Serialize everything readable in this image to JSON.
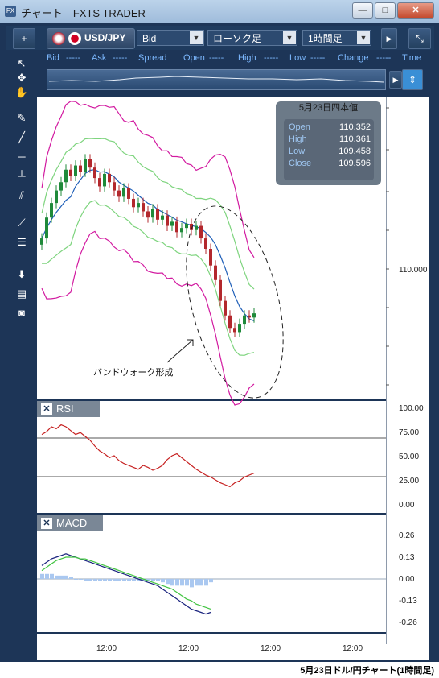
{
  "window": {
    "title": "チャート｜FXTS TRADER",
    "app_icon": "FX"
  },
  "toolbar": {
    "add_label": "+",
    "pair": "USD/JPY",
    "price_type": "Bid",
    "chart_type": "ローソク足",
    "timeframe": "1時間足",
    "right_label": "▶"
  },
  "quotes": {
    "bid_label": "Bid",
    "bid_val": "-----",
    "ask_label": "Ask",
    "ask_val": "-----",
    "spread_label": "Spread",
    "open_label": "Open",
    "open_val": "-----",
    "high_label": "High",
    "high_val": "-----",
    "low_label": "Low",
    "low_val": "-----",
    "change_label": "Change",
    "change_val": "-----",
    "time_label": "Time"
  },
  "ohlc_box": {
    "title": "5月23日四本値",
    "open_label": "Open",
    "open": "110.352",
    "high_label": "High",
    "high": "110.361",
    "low_label": "Low",
    "low": "109.458",
    "close_label": "Close",
    "close": "109.596"
  },
  "annotation": "バンドウォーク形成",
  "price_axis": {
    "label_110": "110.000"
  },
  "rsi": {
    "title": "RSI",
    "ticks": [
      "100.00",
      "75.00",
      "50.00",
      "25.00",
      "0.00"
    ]
  },
  "macd": {
    "title": "MACD",
    "ticks": [
      "0.26",
      "0.13",
      "0.00",
      "-0.13",
      "-0.26"
    ]
  },
  "x_ticks": [
    "12:00",
    "12:00",
    "12:00",
    "12:00"
  ],
  "caption": "5月23日ドル/円チャート(1時間足)",
  "colors": {
    "up": "#1f8a3a",
    "down": "#b3282d",
    "bb_outer": "#d21aa0",
    "bb_inner": "#7ed47e",
    "ma": "#1f5fb8",
    "rsi_line": "#c62020",
    "macd_line": "#1a237e",
    "signal_line": "#42c442",
    "hist": "#aac8f0",
    "frame": "#1d3557"
  },
  "chart_data": {
    "type": "line",
    "ohlc_close": [
      109.95,
      110.05,
      110.12,
      110.18,
      110.22,
      110.28,
      110.25,
      110.3,
      110.27,
      110.33,
      110.29,
      110.24,
      110.2,
      110.26,
      110.22,
      110.18,
      110.15,
      110.19,
      110.14,
      110.1,
      110.12,
      110.08,
      110.05,
      110.09,
      110.04,
      110.06,
      110.01,
      110.03,
      109.98,
      110.0,
      110.02,
      109.99,
      110.01,
      109.95,
      109.9,
      109.82,
      109.75,
      109.65,
      109.58,
      109.52,
      109.5,
      109.54,
      109.58,
      109.57,
      109.59
    ],
    "rsi": [
      72,
      75,
      80,
      78,
      82,
      80,
      76,
      72,
      74,
      70,
      66,
      60,
      55,
      52,
      48,
      50,
      45,
      42,
      40,
      38,
      36,
      40,
      38,
      35,
      37,
      40,
      46,
      50,
      52,
      48,
      44,
      40,
      36,
      33,
      30,
      28,
      25,
      22,
      20,
      18,
      22,
      24,
      28,
      30,
      32
    ],
    "macd": [
      0.08,
      0.1,
      0.12,
      0.13,
      0.14,
      0.15,
      0.14,
      0.13,
      0.12,
      0.11,
      0.1,
      0.09,
      0.08,
      0.07,
      0.06,
      0.05,
      0.04,
      0.03,
      0.02,
      0.01,
      0.0,
      -0.01,
      -0.02,
      -0.03,
      -0.04,
      -0.06,
      -0.08,
      -0.1,
      -0.12,
      -0.14,
      -0.16,
      -0.18,
      -0.19,
      -0.2,
      -0.21,
      -0.2
    ],
    "signal": [
      0.05,
      0.07,
      0.09,
      0.11,
      0.12,
      0.13,
      0.13,
      0.13,
      0.12,
      0.12,
      0.11,
      0.1,
      0.09,
      0.08,
      0.07,
      0.06,
      0.05,
      0.04,
      0.03,
      0.02,
      0.01,
      0.0,
      -0.01,
      -0.02,
      -0.03,
      -0.04,
      -0.05,
      -0.06,
      -0.08,
      -0.1,
      -0.12,
      -0.13,
      -0.15,
      -0.16,
      -0.17,
      -0.18
    ]
  }
}
